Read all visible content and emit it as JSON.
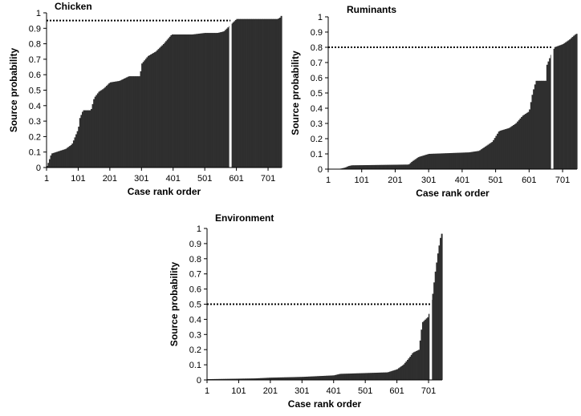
{
  "colors": {
    "bar": "#2f2f2f",
    "axis": "#000000",
    "threshold": "#000000",
    "gap": "#ffffff"
  },
  "chart_data": [
    {
      "type": "bar",
      "title": "Chicken",
      "xlabel": "Case rank order",
      "ylabel": "Source probability",
      "xlim": [
        1,
        744
      ],
      "ylim": [
        0,
        1
      ],
      "x_ticks": [
        "1",
        "101",
        "201",
        "301",
        "401",
        "501",
        "601",
        "701"
      ],
      "y_ticks": [
        "0",
        "0.1",
        "0.2",
        "0.3",
        "0.4",
        "0.5",
        "0.6",
        "0.7",
        "0.8",
        "0.9",
        "1"
      ],
      "grid": false,
      "legend": "none",
      "threshold": 0.95,
      "gap_rank": 582,
      "profile": [
        [
          1,
          0.01
        ],
        [
          5,
          0.03
        ],
        [
          10,
          0.06
        ],
        [
          15,
          0.09
        ],
        [
          30,
          0.1
        ],
        [
          60,
          0.12
        ],
        [
          80,
          0.15
        ],
        [
          90,
          0.2
        ],
        [
          100,
          0.25
        ],
        [
          105,
          0.32
        ],
        [
          115,
          0.37
        ],
        [
          140,
          0.37
        ],
        [
          150,
          0.45
        ],
        [
          165,
          0.49
        ],
        [
          180,
          0.51
        ],
        [
          200,
          0.55
        ],
        [
          230,
          0.56
        ],
        [
          260,
          0.59
        ],
        [
          295,
          0.59
        ],
        [
          300,
          0.67
        ],
        [
          320,
          0.72
        ],
        [
          345,
          0.75
        ],
        [
          370,
          0.8
        ],
        [
          395,
          0.86
        ],
        [
          460,
          0.86
        ],
        [
          500,
          0.87
        ],
        [
          540,
          0.87
        ],
        [
          560,
          0.88
        ],
        [
          580,
          0.92
        ],
        [
          600,
          0.96
        ],
        [
          730,
          0.96
        ],
        [
          738,
          0.97
        ],
        [
          744,
          0.99
        ]
      ]
    },
    {
      "type": "bar",
      "title": "Ruminants",
      "xlabel": "Case rank order",
      "ylabel": "Source probability",
      "xlim": [
        1,
        744
      ],
      "ylim": [
        0,
        1
      ],
      "x_ticks": [
        "1",
        "101",
        "201",
        "301",
        "401",
        "501",
        "601",
        "701"
      ],
      "y_ticks": [
        "0",
        "0.1",
        "0.2",
        "0.3",
        "0.4",
        "0.5",
        "0.6",
        "0.7",
        "0.8",
        "0.9",
        "1"
      ],
      "grid": false,
      "legend": "none",
      "threshold": 0.8,
      "gap_rank": 670,
      "profile": [
        [
          1,
          0.0
        ],
        [
          30,
          0.0
        ],
        [
          40,
          0.005
        ],
        [
          50,
          0.01
        ],
        [
          60,
          0.02
        ],
        [
          70,
          0.025
        ],
        [
          240,
          0.03
        ],
        [
          250,
          0.05
        ],
        [
          270,
          0.08
        ],
        [
          300,
          0.1
        ],
        [
          420,
          0.11
        ],
        [
          450,
          0.12
        ],
        [
          470,
          0.15
        ],
        [
          490,
          0.18
        ],
        [
          510,
          0.25
        ],
        [
          540,
          0.27
        ],
        [
          560,
          0.3
        ],
        [
          580,
          0.35
        ],
        [
          600,
          0.38
        ],
        [
          610,
          0.5
        ],
        [
          620,
          0.58
        ],
        [
          650,
          0.58
        ],
        [
          652,
          0.68
        ],
        [
          665,
          0.75
        ],
        [
          675,
          0.8
        ],
        [
          700,
          0.82
        ],
        [
          720,
          0.85
        ],
        [
          735,
          0.88
        ],
        [
          742,
          0.89
        ],
        [
          744,
          0.96
        ]
      ]
    },
    {
      "type": "bar",
      "title": "Environment",
      "xlabel": "Case rank order",
      "ylabel": "Source probability",
      "xlim": [
        1,
        744
      ],
      "ylim": [
        0,
        1
      ],
      "x_ticks": [
        "1",
        "101",
        "201",
        "301",
        "401",
        "501",
        "601",
        "701"
      ],
      "y_ticks": [
        "0",
        "0.1",
        "0.2",
        "0.3",
        "0.4",
        "0.5",
        "0.6",
        "0.7",
        "0.8",
        "0.9",
        "1"
      ],
      "grid": false,
      "legend": "none",
      "threshold": 0.5,
      "gap_rank": 708,
      "profile": [
        [
          1,
          0.005
        ],
        [
          150,
          0.01
        ],
        [
          200,
          0.015
        ],
        [
          300,
          0.02
        ],
        [
          400,
          0.03
        ],
        [
          420,
          0.04
        ],
        [
          570,
          0.05
        ],
        [
          600,
          0.07
        ],
        [
          620,
          0.1
        ],
        [
          640,
          0.15
        ],
        [
          650,
          0.18
        ],
        [
          670,
          0.2
        ],
        [
          675,
          0.3
        ],
        [
          680,
          0.38
        ],
        [
          700,
          0.42
        ],
        [
          705,
          0.5
        ],
        [
          712,
          0.55
        ],
        [
          720,
          0.7
        ],
        [
          730,
          0.85
        ],
        [
          738,
          0.95
        ],
        [
          744,
          0.98
        ]
      ]
    }
  ]
}
